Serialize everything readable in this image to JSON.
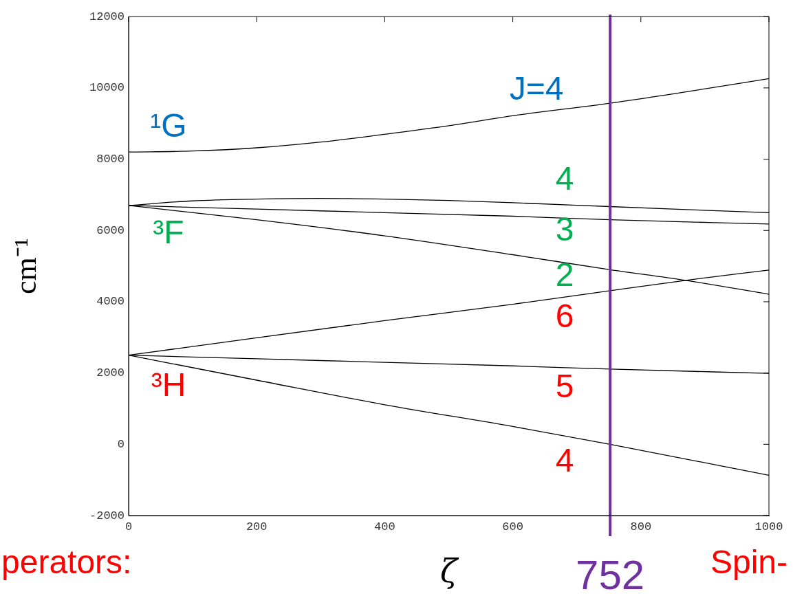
{
  "chart_data": {
    "type": "line",
    "xlabel": "ζ",
    "ylabel": "cm⁻¹",
    "xlim": [
      0,
      1000
    ],
    "xticks": [
      0,
      200,
      400,
      600,
      800,
      1000
    ],
    "ylim": [
      -2000,
      12000
    ],
    "yticks": [
      -2000,
      0,
      2000,
      4000,
      6000,
      8000,
      10000,
      12000
    ],
    "grid": false,
    "legend": false,
    "marker": "none",
    "line_style": "solid",
    "series": [
      {
        "color": "#000000",
        "x": [
          0,
          100,
          200,
          300,
          400,
          500,
          600,
          752,
          850,
          1000
        ],
        "values": [
          8200,
          8230,
          8320,
          8480,
          8700,
          8940,
          9220,
          9570,
          9830,
          10260
        ]
      },
      {
        "color": "#000000",
        "x": [
          0,
          100,
          200,
          300,
          400,
          500,
          600,
          752,
          850,
          1000
        ],
        "values": [
          6700,
          6830,
          6880,
          6900,
          6880,
          6840,
          6780,
          6670,
          6600,
          6500
        ]
      },
      {
        "color": "#000000",
        "x": [
          0,
          200,
          400,
          600,
          752,
          1000
        ],
        "values": [
          6700,
          6600,
          6500,
          6400,
          6300,
          6180
        ]
      },
      {
        "color": "#000000",
        "x": [
          0,
          200,
          400,
          600,
          752,
          870,
          1000
        ],
        "values": [
          6700,
          6300,
          5850,
          5320,
          4900,
          4600,
          4210
        ]
      },
      {
        "color": "#000000",
        "x": [
          0,
          200,
          400,
          600,
          752,
          870,
          1000
        ],
        "values": [
          2500,
          2990,
          3470,
          3930,
          4310,
          4600,
          4890
        ]
      },
      {
        "color": "#000000",
        "x": [
          0,
          200,
          400,
          600,
          752,
          1000
        ],
        "values": [
          2500,
          2400,
          2300,
          2200,
          2110,
          1990
        ]
      },
      {
        "color": "#000000",
        "x": [
          0,
          200,
          400,
          600,
          752,
          1000
        ],
        "values": [
          2500,
          1800,
          1110,
          500,
          0,
          -870
        ]
      }
    ],
    "ref_lines": [
      {
        "axis": "x",
        "value": 752,
        "label": "752",
        "color": "#7030a0"
      }
    ],
    "annotations": [
      "¹G",
      "J=4",
      "4",
      "3",
      "2",
      "6",
      "5",
      "4",
      "³F",
      "³H",
      "perators:",
      "Spin-"
    ]
  }
}
